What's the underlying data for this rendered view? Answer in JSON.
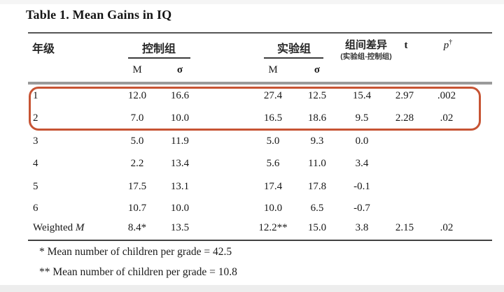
{
  "title": "Table 1.  Mean Gains in IQ",
  "table": {
    "headers": {
      "grade": "年级",
      "control_group": "控制组",
      "experimental_group": "实验组",
      "difference": "组间差异",
      "difference_sub": "(实验组-控制组)",
      "t": "t",
      "p": "p",
      "p_sup": "†",
      "mean": "M",
      "sigma": "σ"
    },
    "highlight_color": "#c75434",
    "highlighted_rows": [
      0,
      1
    ],
    "rows": [
      {
        "grade": "1",
        "cm": "12.0",
        "cs": "16.6",
        "em": "27.4",
        "es": "12.5",
        "diff": "15.4",
        "t": "2.97",
        "p": ".002"
      },
      {
        "grade": "2",
        "cm": "7.0",
        "cs": "10.0",
        "em": "16.5",
        "es": "18.6",
        "diff": "9.5",
        "t": "2.28",
        "p": ".02"
      },
      {
        "grade": "3",
        "cm": "5.0",
        "cs": "11.9",
        "em": "5.0",
        "es": "9.3",
        "diff": "0.0",
        "t": "",
        "p": ""
      },
      {
        "grade": "4",
        "cm": "2.2",
        "cs": "13.4",
        "em": "5.6",
        "es": "11.0",
        "diff": "3.4",
        "t": "",
        "p": ""
      },
      {
        "grade": "5",
        "cm": "17.5",
        "cs": "13.1",
        "em": "17.4",
        "es": "17.8",
        "diff": "-0.1",
        "t": "",
        "p": ""
      },
      {
        "grade": "6",
        "cm": "10.7",
        "cs": "10.0",
        "em": "10.0",
        "es": "6.5",
        "diff": "-0.7",
        "t": "",
        "p": ""
      },
      {
        "grade": "Weighted M",
        "cm": "8.4*",
        "cs": "13.5",
        "em": "12.2**",
        "es": "15.0",
        "diff": "3.8",
        "t": "2.15",
        "p": ".02"
      }
    ]
  },
  "footnotes": [
    "* Mean number of children per grade = 42.5",
    "** Mean number of children per grade = 10.8"
  ]
}
